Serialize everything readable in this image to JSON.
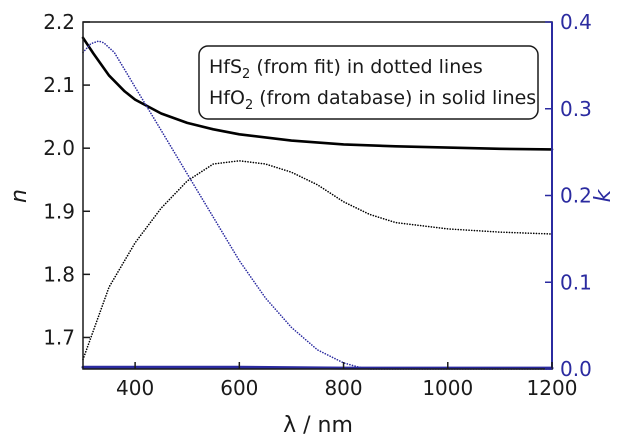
{
  "chart_data": {
    "type": "line",
    "title": "",
    "xlabel": "λ / nm",
    "ylabel": "n",
    "y2label": "k",
    "xlim": [
      300,
      1200
    ],
    "ylim": [
      1.65,
      2.2
    ],
    "y2lim": [
      0.0,
      0.4
    ],
    "xticks": [
      400,
      600,
      800,
      1000,
      1200
    ],
    "yticks": [
      1.7,
      1.8,
      1.9,
      2.0,
      2.1,
      2.2
    ],
    "y2ticks": [
      0.0,
      0.1,
      0.2,
      0.3,
      0.4
    ],
    "xtick_labels": [
      "400",
      "600",
      "800",
      "1000",
      "1200"
    ],
    "ytick_labels": [
      "1.7",
      "1.8",
      "1.9",
      "2.0",
      "2.1",
      "2.2"
    ],
    "y2tick_labels": [
      "0.0",
      "0.1",
      "0.2",
      "0.3",
      "0.4"
    ],
    "grid": false,
    "legend": {
      "placement": "top-right",
      "line1_main": "HfS",
      "line1_sub": "2",
      "line1_rest": " (from fit) in dotted lines",
      "line2_main": "HfO",
      "line2_sub": "2",
      "line2_rest": " (from database) in solid lines"
    },
    "colors": {
      "n_axis": "#1a1a1a",
      "k_axis": "#2b2ba0"
    },
    "series": [
      {
        "style": "solid",
        "axis": "left",
        "color": "#000000",
        "x": [
          300,
          320,
          350,
          380,
          400,
          450,
          500,
          550,
          600,
          700,
          800,
          900,
          1000,
          1100,
          1200
        ],
        "y": [
          2.175,
          2.15,
          2.115,
          2.09,
          2.077,
          2.055,
          2.04,
          2.03,
          2.022,
          2.012,
          2.006,
          2.003,
          2.001,
          1.999,
          1.998
        ]
      },
      {
        "style": "dotted",
        "axis": "left",
        "color": "#000000",
        "x": [
          300,
          350,
          400,
          450,
          500,
          550,
          600,
          650,
          700,
          750,
          800,
          850,
          900,
          1000,
          1100,
          1200
        ],
        "y": [
          1.665,
          1.78,
          1.85,
          1.905,
          1.948,
          1.975,
          1.98,
          1.975,
          1.962,
          1.942,
          1.915,
          1.895,
          1.882,
          1.872,
          1.867,
          1.864
        ]
      },
      {
        "style": "solid",
        "axis": "right",
        "color": "#2b2ba0",
        "x": [
          300,
          400,
          600,
          800,
          1000,
          1200
        ],
        "y": [
          0.002,
          0.002,
          0.002,
          0.001,
          0.001,
          0.001
        ]
      },
      {
        "style": "dotted",
        "axis": "right",
        "color": "#2b2ba0",
        "x": [
          300,
          315,
          330,
          340,
          360,
          380,
          400,
          450,
          500,
          550,
          600,
          650,
          700,
          750,
          800,
          830,
          850,
          1200
        ],
        "y": [
          0.365,
          0.375,
          0.378,
          0.376,
          0.365,
          0.345,
          0.325,
          0.275,
          0.225,
          0.175,
          0.125,
          0.082,
          0.048,
          0.022,
          0.007,
          0.002,
          0.0,
          0.0
        ]
      }
    ]
  }
}
